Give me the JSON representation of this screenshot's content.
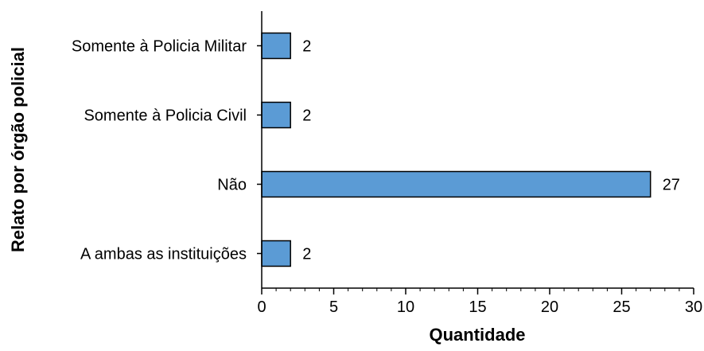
{
  "chart_data": {
    "type": "bar",
    "orientation": "horizontal",
    "categories": [
      "Somente à Policia Militar",
      "Somente à Policia Civil",
      "Não",
      "A ambas as instituições"
    ],
    "values": [
      2,
      2,
      27,
      2
    ],
    "data_labels": [
      "2",
      "2",
      "27",
      "2"
    ],
    "title": "",
    "xlabel": "Quantidade",
    "ylabel": "Relato por órgão policial",
    "xlim": [
      0,
      30
    ],
    "xticks": [
      0,
      5,
      10,
      15,
      20,
      25,
      30
    ],
    "xtick_labels": [
      "0",
      "5",
      "10",
      "15",
      "20",
      "25",
      "30"
    ],
    "grid": false,
    "legend": "none",
    "bar_color": "#5B9BD5",
    "bar_edge_color": "#000000"
  }
}
